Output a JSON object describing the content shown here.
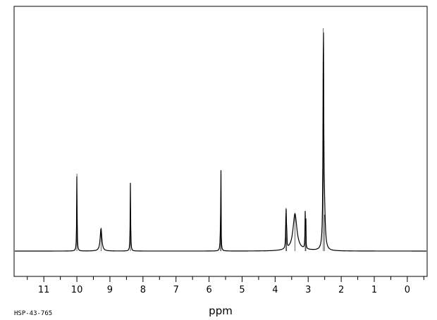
{
  "chart_data": {
    "type": "line",
    "title": "",
    "xlabel": "ppm",
    "ylabel": "",
    "x_direction": "reversed",
    "xlim": [
      11.9,
      -0.6
    ],
    "ylim": [
      0,
      1.0
    ],
    "xticks": [
      11,
      10,
      9,
      8,
      7,
      6,
      5,
      4,
      3,
      2,
      1,
      0
    ],
    "xtick_labels": [
      "11",
      "10",
      "9",
      "8",
      "7",
      "6",
      "5",
      "4",
      "3",
      "2",
      "1",
      "0"
    ],
    "grid": false,
    "legend": "none",
    "line_color": "#000000",
    "series": [
      {
        "peaks": [
          {
            "ppm": 10.0,
            "height": 0.34,
            "width": 0.008
          },
          {
            "ppm": 9.27,
            "height": 0.1,
            "width": 0.03
          },
          {
            "ppm": 8.38,
            "height": 0.3,
            "width": 0.008
          },
          {
            "ppm": 5.65,
            "height": 0.13,
            "width": 0.012
          },
          {
            "ppm": 5.64,
            "height": 0.29,
            "width": 0.004
          },
          {
            "ppm": 3.67,
            "height": 0.19,
            "width": 0.01
          },
          {
            "ppm": 3.65,
            "height": 0.12,
            "width": 0.004
          },
          {
            "ppm": 3.4,
            "height": 0.16,
            "width": 0.07
          },
          {
            "ppm": 3.09,
            "height": 0.16,
            "width": 0.008
          },
          {
            "ppm": 3.07,
            "height": 0.12,
            "width": 0.004
          },
          {
            "ppm": 2.54,
            "height": 0.98,
            "width": 0.012
          },
          {
            "ppm": 2.51,
            "height": 0.16,
            "width": 0.03
          }
        ]
      }
    ]
  },
  "footer": {
    "sample_id": "HSP-43-765"
  }
}
